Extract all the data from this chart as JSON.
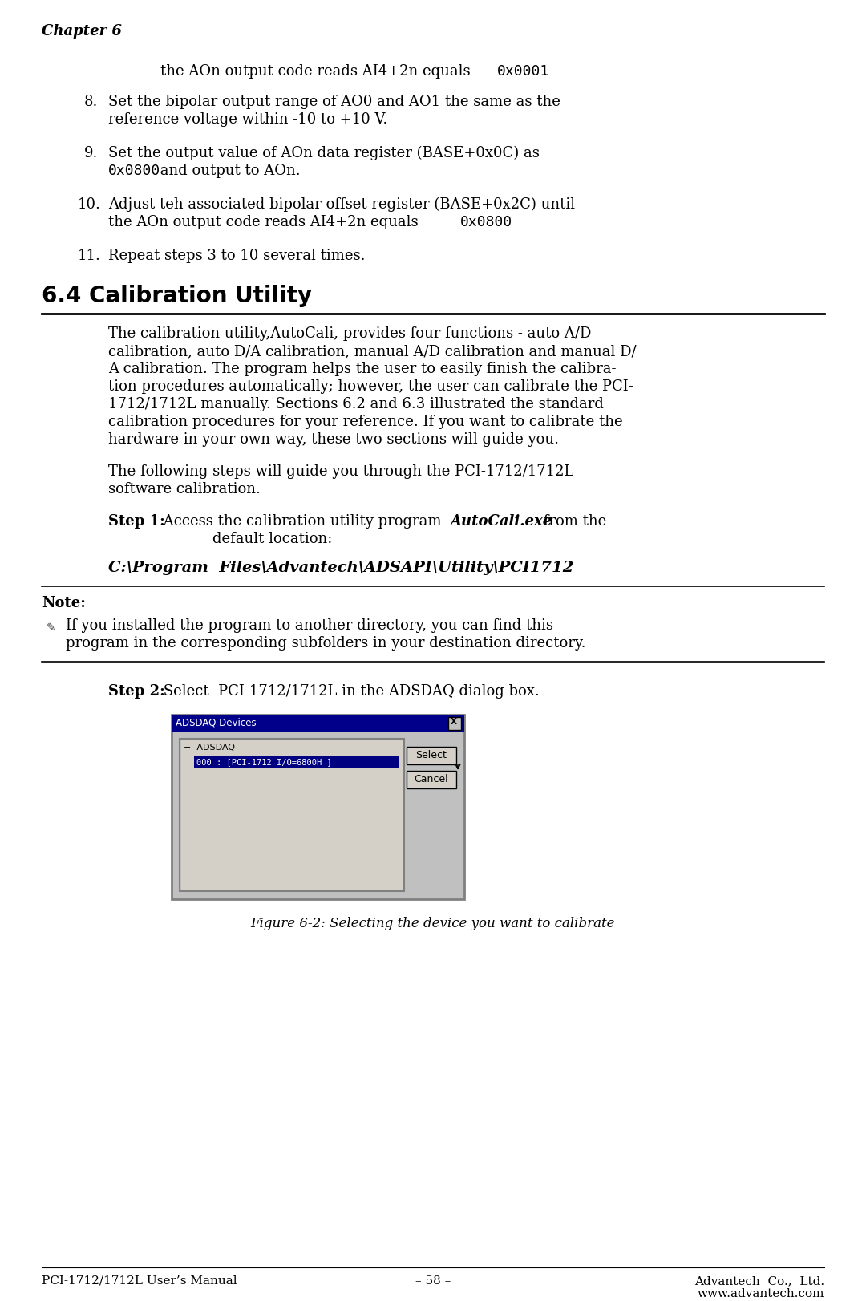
{
  "bg_color": "#ffffff",
  "chapter_header": "Chapter 6",
  "section_title": "6.4 Calibration Utility",
  "body_lines": [
    "The calibration utility,AutoCali, provides four functions - auto A/D",
    "calibration, auto D/A calibration, manual A/D calibration and manual D/",
    "A calibration. The program helps the user to easily finish the calibra-",
    "tion procedures automatically; however, the user can calibrate the PCI-",
    "1712/1712L manually. Sections 6.2 and 6.3 illustrated the standard",
    "calibration procedures for your reference. If you want to calibrate the",
    "hardware in your own way, these two sections will guide you."
  ],
  "follow_lines": [
    "The following steps will guide you through the PCI-1712/1712L",
    "software calibration."
  ],
  "note_label": "Note:",
  "note_bullet_text_line1": "If you installed the program to another directory, you can find this",
  "note_bullet_text_line2": "program in the corresponding subfolders in your destination directory.",
  "path_text": "C:\\Program  Files\\Advantech\\ADSAPI\\Utility\\PCI1712",
  "figure_caption": "Figure 6-2: Selecting the device you want to calibrate",
  "footer_left": "PCI-1712/1712L User’s Manual",
  "footer_center": "– 58 –",
  "footer_right_line1": "Advantech  Co.,  Ltd.",
  "footer_right_line2": "www.advantech.com",
  "dlg_title": "ADSDAQ Devices",
  "dlg_tree_root": "ADSDAQ",
  "dlg_sel_item": "000 : [PCI-1712 I/O=6800H ]",
  "dlg_btn1": "Select",
  "dlg_btn2": "Cancel"
}
